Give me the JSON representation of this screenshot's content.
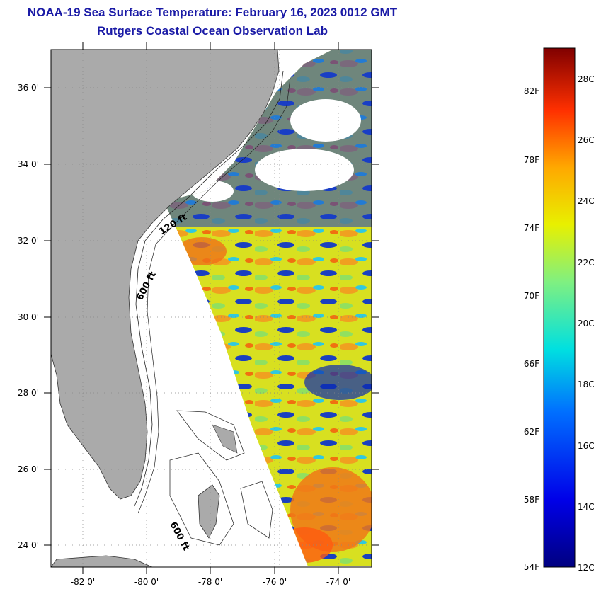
{
  "header": {
    "title": "NOAA-19 Sea Surface Temperature:  February 16, 2023 0012 GMT",
    "subtitle": "Rutgers Coastal Ocean Observation Lab"
  },
  "map": {
    "lat_labels": [
      "36 0'",
      "34 0'",
      "32 0'",
      "30 0'",
      "28 0'",
      "26 0'",
      "24 0'"
    ],
    "lon_labels": [
      "-82 0'",
      "-80 0'",
      "-78 0'",
      "-76 0'",
      "-74 0'"
    ],
    "lat_range": [
      23,
      37
    ],
    "lon_range": [
      -83,
      -73
    ],
    "contour_labels": [
      "120 ft",
      "600 ft",
      "600 ft"
    ],
    "colors": {
      "land": "#aaaaaa",
      "cold": "#0a1ea8",
      "mid": "#e6e61e",
      "warm": "#f08c14"
    }
  },
  "colorbar": {
    "f_labels": [
      "82F",
      "78F",
      "74F",
      "70F",
      "66F",
      "62F",
      "58F",
      "54F"
    ],
    "c_labels": [
      "28C",
      "26C",
      "24C",
      "22C",
      "20C",
      "18C",
      "16C",
      "14C",
      "12C"
    ],
    "range_c": [
      12,
      29
    ]
  }
}
